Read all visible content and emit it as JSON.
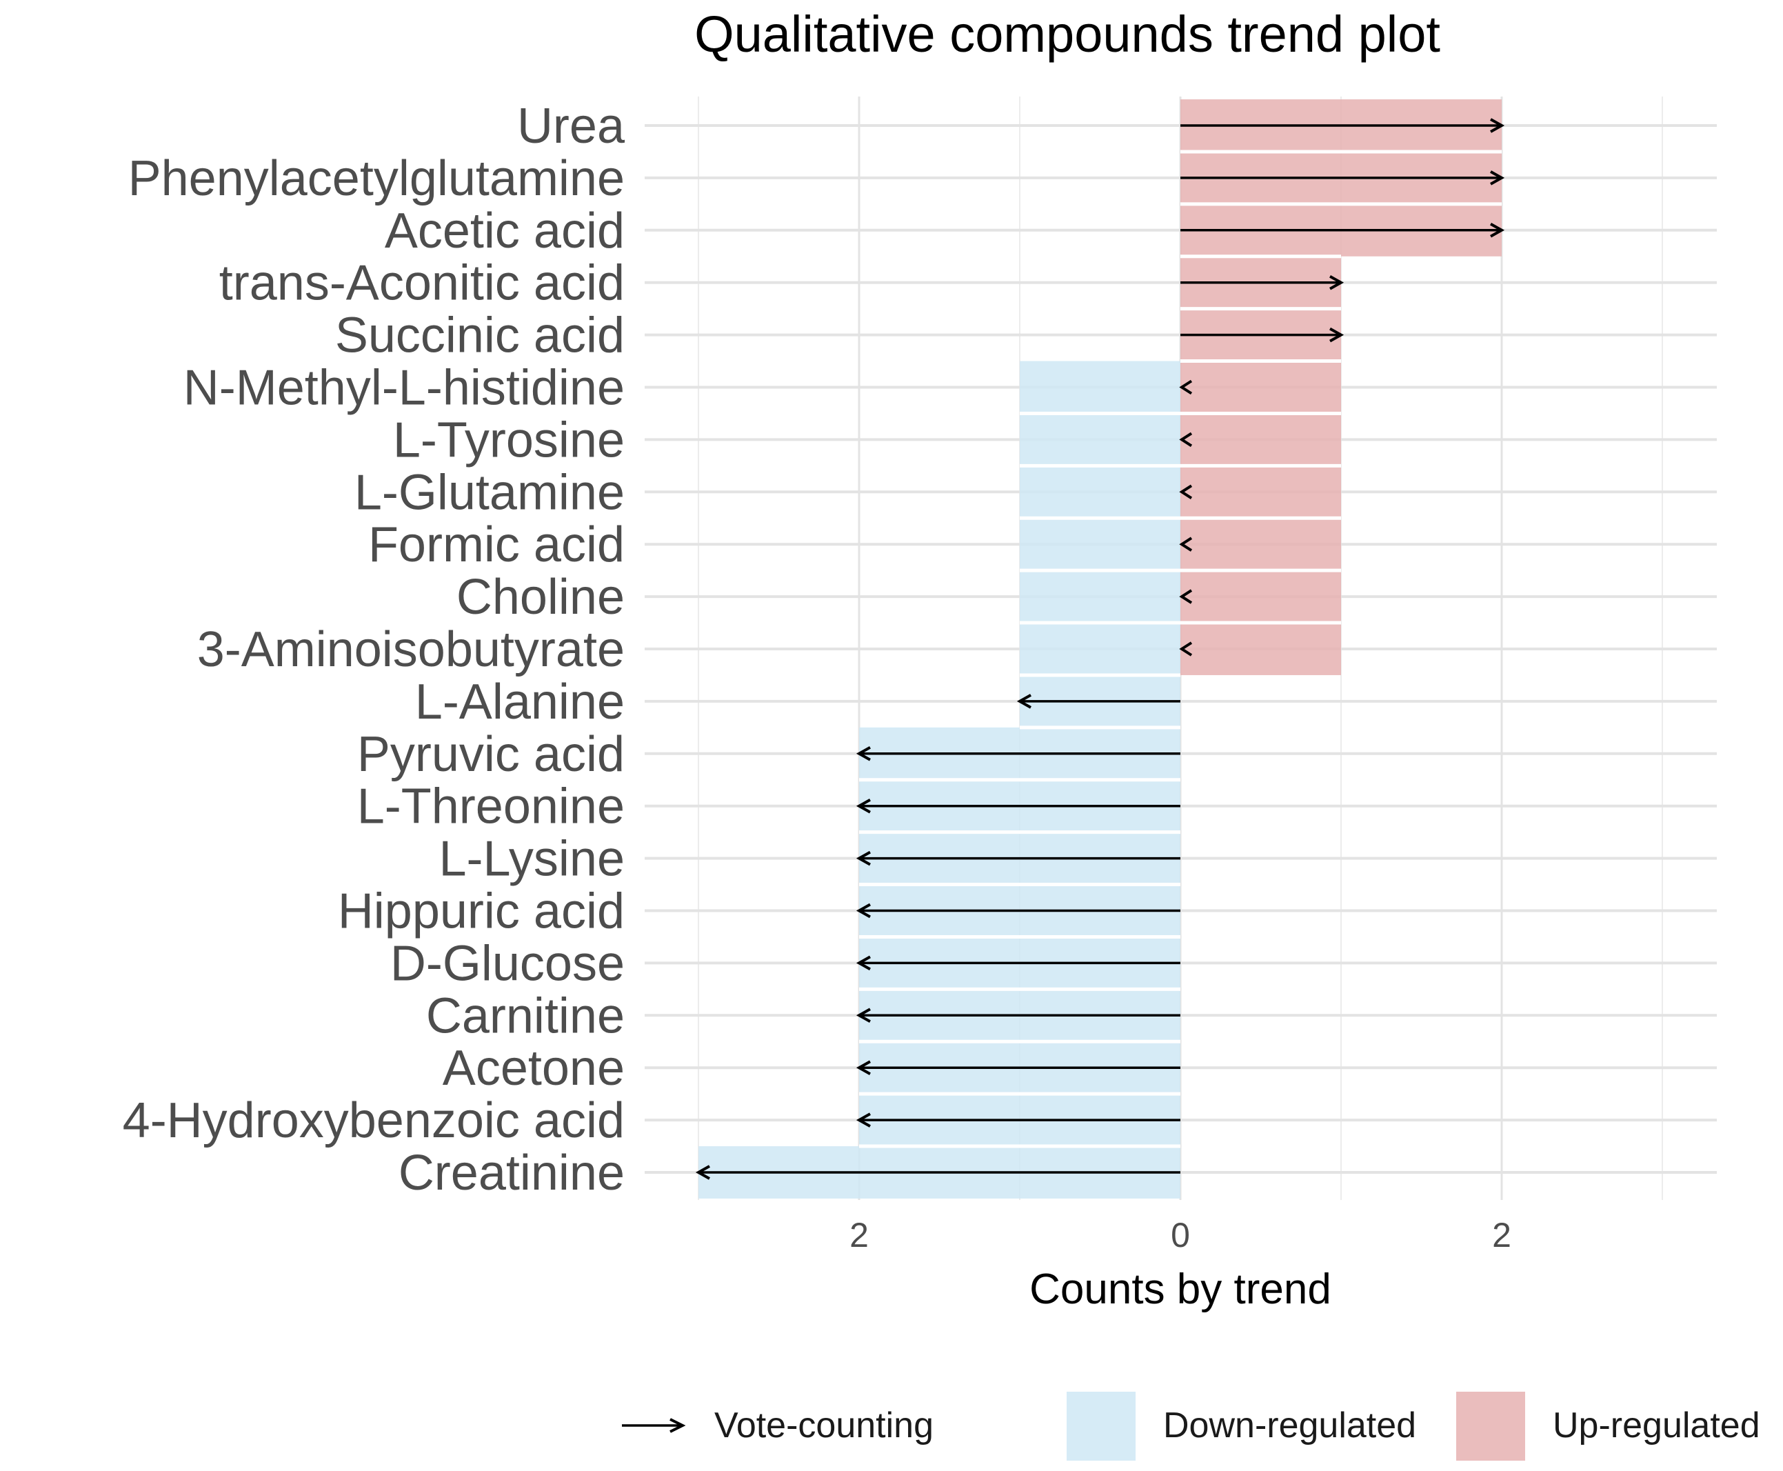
{
  "chart_data": {
    "type": "bar",
    "orientation": "horizontal",
    "title": "Qualitative compounds trend plot",
    "xlabel": "Counts by trend",
    "ylabel": "",
    "xlim": [
      -3.2,
      3.35
    ],
    "x_ticks": [
      {
        "value": -2,
        "label": "2"
      },
      {
        "value": 0,
        "label": "0"
      },
      {
        "value": 2,
        "label": "2"
      }
    ],
    "x_minor_grid": [
      -3,
      -1,
      1,
      3
    ],
    "grid": true,
    "categories": [
      "Urea",
      "Phenylacetylglutamine",
      "Acetic acid",
      "trans-Aconitic acid",
      "Succinic acid",
      "N-Methyl-L-histidine",
      "L-Tyrosine",
      "L-Glutamine",
      "Formic acid",
      "Choline",
      "3-Aminoisobutyrate",
      "L-Alanine",
      "Pyruvic acid",
      "L-Threonine",
      "L-Lysine",
      "Hippuric acid",
      "D-Glucose",
      "Carnitine",
      "Acetone",
      "4-Hydroxybenzoic acid",
      "Creatinine"
    ],
    "series": [
      {
        "name": "Down-regulated",
        "color": "#cfe8f5",
        "values": [
          0,
          0,
          0,
          0,
          0,
          1,
          1,
          1,
          1,
          1,
          1,
          1,
          2,
          2,
          2,
          2,
          2,
          2,
          2,
          2,
          3
        ]
      },
      {
        "name": "Up-regulated",
        "color": "#e6b2b2",
        "values": [
          2,
          2,
          2,
          1,
          1,
          1,
          1,
          1,
          1,
          1,
          1,
          0,
          0,
          0,
          0,
          0,
          0,
          0,
          0,
          0,
          0
        ]
      },
      {
        "name": "Vote-counting",
        "color": "#000000",
        "values": [
          2,
          2,
          2,
          1,
          1,
          0,
          0,
          0,
          0,
          0,
          0,
          -1,
          -2,
          -2,
          -2,
          -2,
          -2,
          -2,
          -2,
          -2,
          -3
        ]
      }
    ],
    "legend": {
      "position": "bottom",
      "items": [
        {
          "label": "Vote-counting",
          "kind": "arrow"
        },
        {
          "label": "Down-regulated",
          "kind": "fill",
          "color": "#cfe8f5"
        },
        {
          "label": "Up-regulated",
          "kind": "fill",
          "color": "#e6b2b2"
        }
      ]
    }
  }
}
